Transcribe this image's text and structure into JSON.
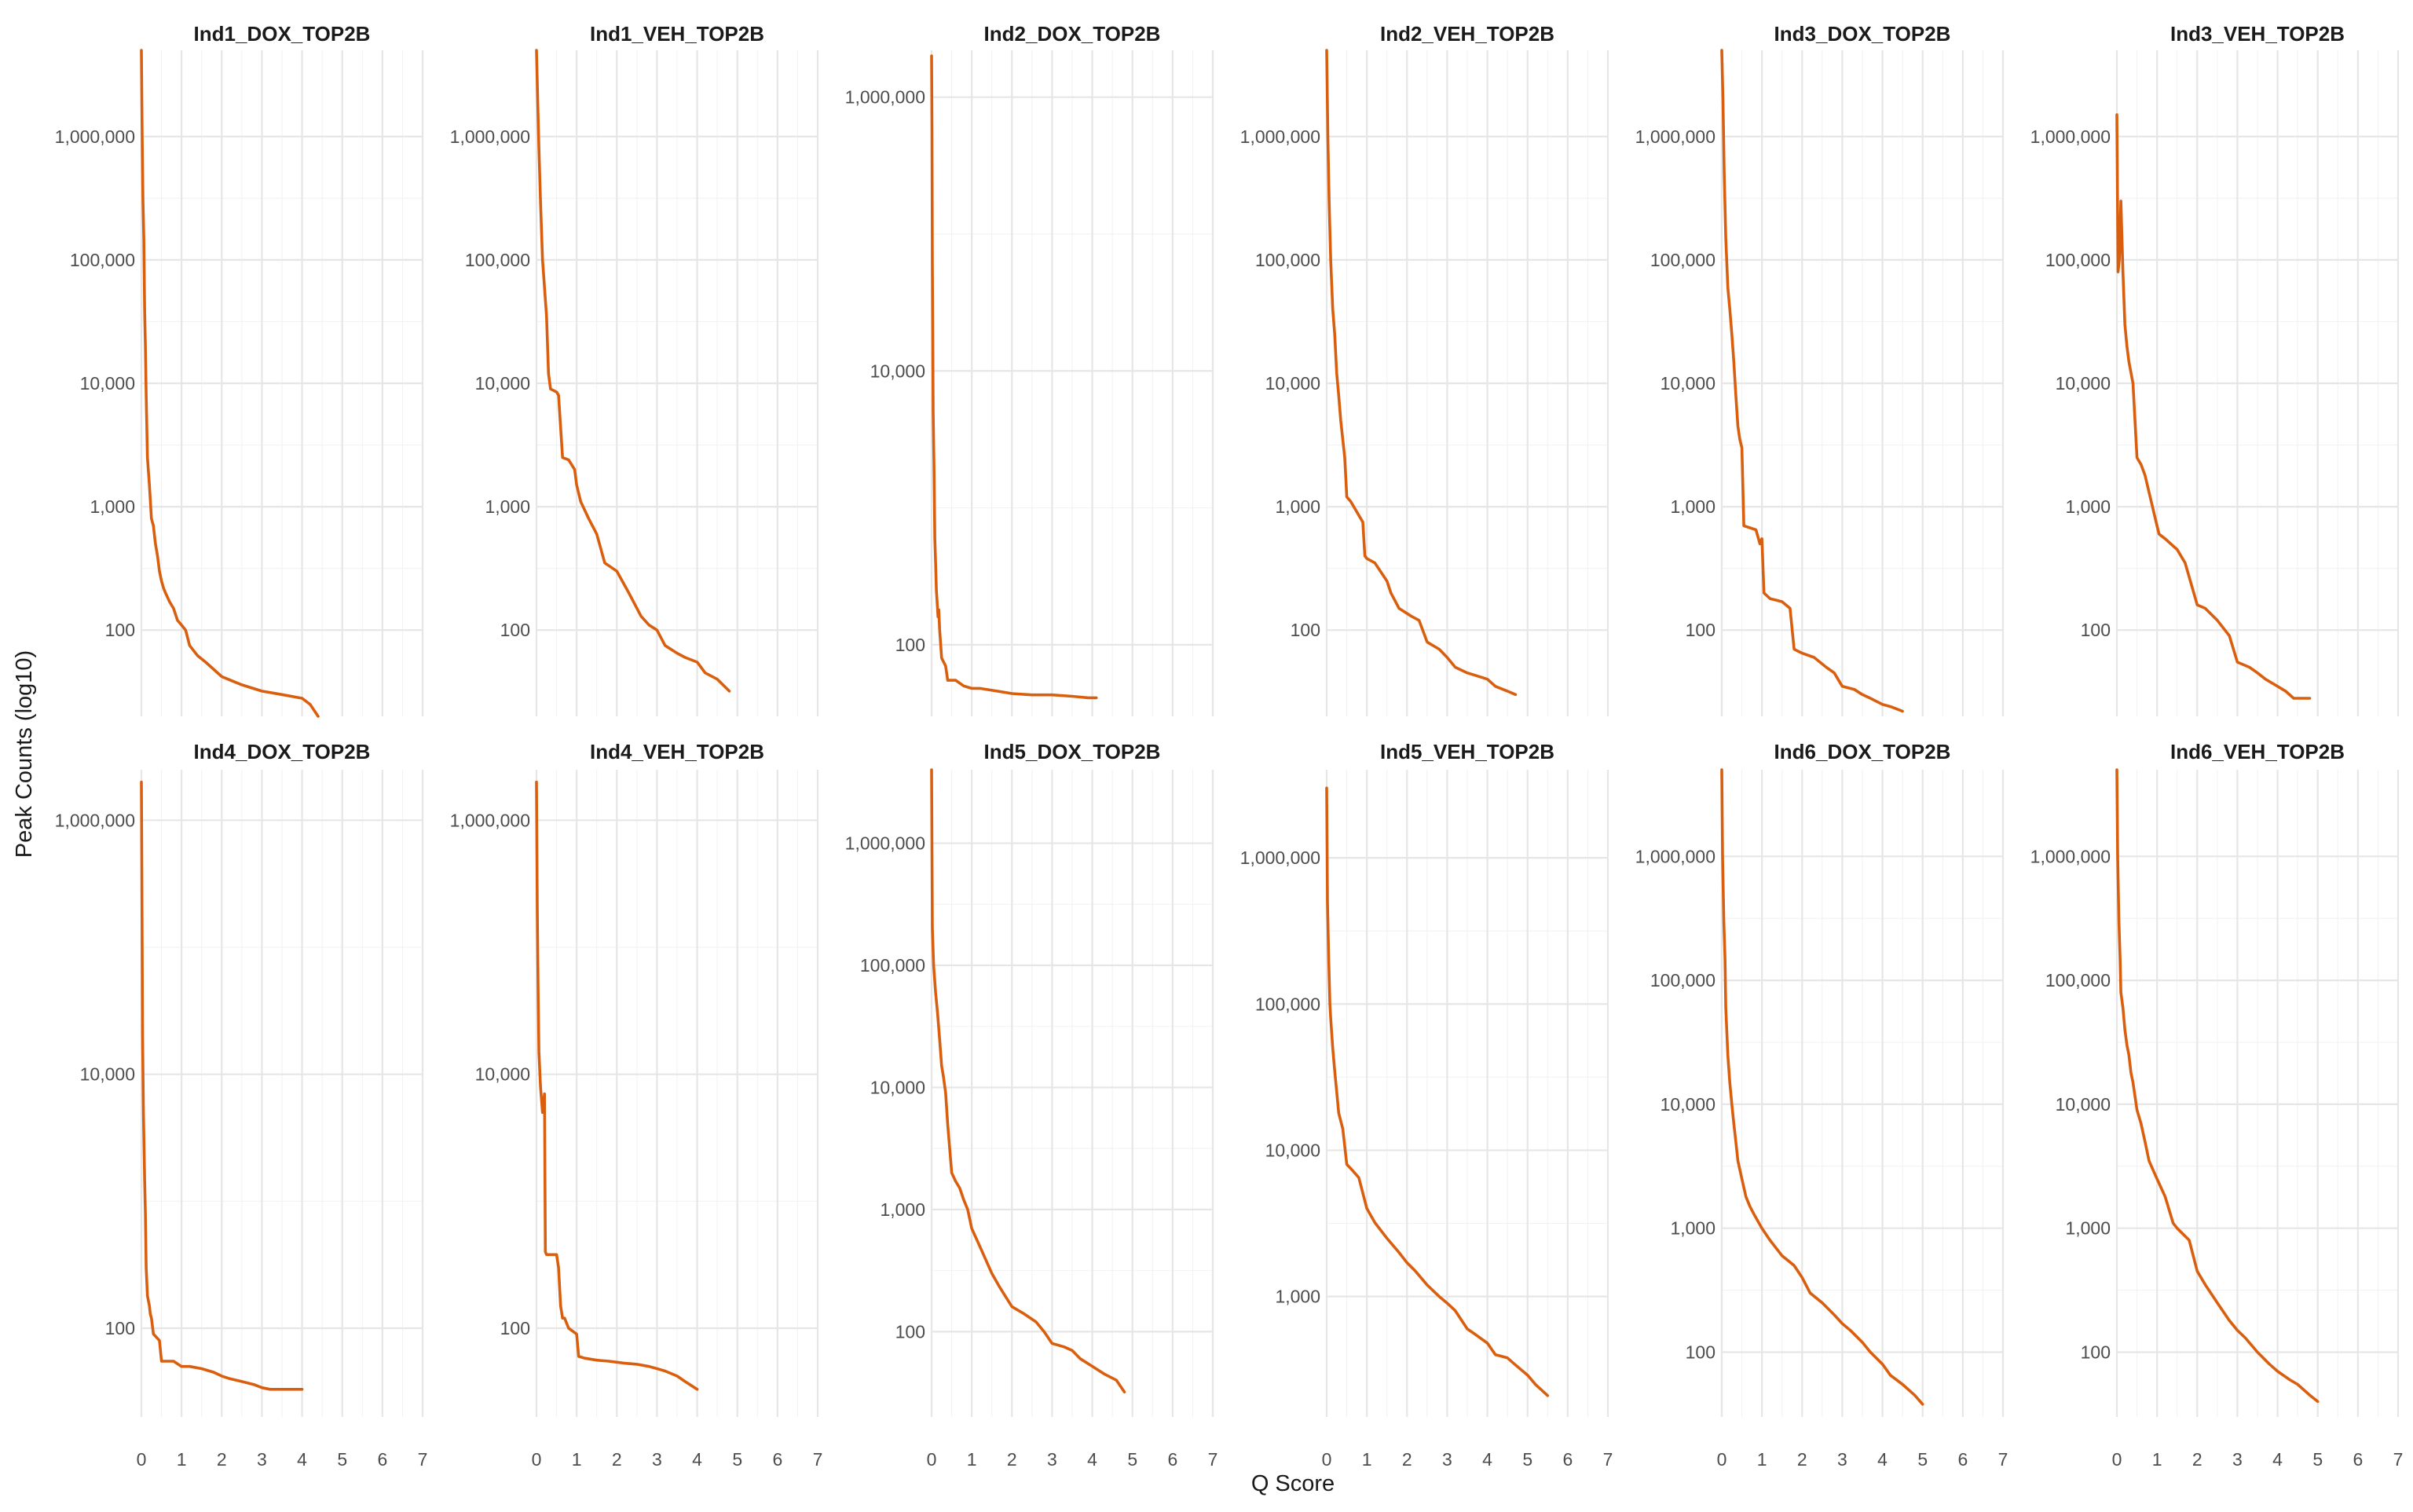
{
  "chart_data": {
    "type": "line",
    "xlabel": "Q Score",
    "ylabel": "Peak Counts (log10)",
    "y_scale": "log10",
    "line_color": "#D95F0E",
    "x_ticks": [
      0,
      1,
      2,
      3,
      4,
      5,
      6,
      7
    ],
    "xlim": [
      0,
      7
    ],
    "panels": [
      {
        "title": "Ind1_DOX_TOP2B",
        "ylim": [
          20,
          5000000
        ],
        "y_ticks": [
          100,
          1000,
          10000,
          100000,
          1000000
        ],
        "y_tick_labels": [
          "100",
          "1,000",
          "10,000",
          "100,000",
          "1,000,000"
        ],
        "x": [
          0,
          0.02,
          0.04,
          0.06,
          0.08,
          0.1,
          0.12,
          0.15,
          0.2,
          0.25,
          0.3,
          0.35,
          0.4,
          0.45,
          0.5,
          0.55,
          0.6,
          0.7,
          0.8,
          0.9,
          1.0,
          1.1,
          1.2,
          1.4,
          1.6,
          2.0,
          2.5,
          3.0,
          3.5,
          4.0,
          4.2,
          4.4
        ],
        "y": [
          5000000,
          1000000,
          300000,
          150000,
          40000,
          20000,
          8000,
          2500,
          1500,
          800,
          700,
          500,
          400,
          300,
          250,
          220,
          200,
          170,
          150,
          120,
          110,
          100,
          75,
          62,
          55,
          42,
          36,
          32,
          30,
          28,
          25,
          20
        ]
      },
      {
        "title": "Ind1_VEH_TOP2B",
        "ylim": [
          20,
          5000000
        ],
        "y_ticks": [
          100,
          1000,
          10000,
          100000,
          1000000
        ],
        "y_tick_labels": [
          "100",
          "1,000",
          "10,000",
          "100,000",
          "1,000,000"
        ],
        "x": [
          0,
          0.03,
          0.06,
          0.1,
          0.15,
          0.2,
          0.25,
          0.3,
          0.35,
          0.5,
          0.55,
          0.65,
          0.8,
          0.95,
          1.0,
          1.1,
          1.3,
          1.5,
          1.7,
          2.0,
          2.3,
          2.6,
          2.8,
          3.0,
          3.2,
          3.5,
          3.7,
          4.0,
          4.2,
          4.5,
          4.8
        ],
        "y": [
          5000000,
          2000000,
          800000,
          300000,
          100000,
          60000,
          35000,
          12000,
          9000,
          8500,
          8000,
          2500,
          2400,
          2000,
          1500,
          1100,
          800,
          600,
          350,
          300,
          200,
          130,
          110,
          100,
          75,
          65,
          60,
          55,
          45,
          40,
          32
        ]
      },
      {
        "title": "Ind2_DOX_TOP2B",
        "ylim": [
          30,
          2200000
        ],
        "y_ticks": [
          100,
          10000,
          1000000
        ],
        "y_tick_labels": [
          "100",
          "10,000",
          "1,000,000"
        ],
        "x": [
          0,
          0.01,
          0.02,
          0.03,
          0.04,
          0.06,
          0.08,
          0.1,
          0.12,
          0.14,
          0.16,
          0.18,
          0.2,
          0.25,
          0.35,
          0.4,
          0.6,
          0.8,
          1.0,
          1.2,
          1.6,
          2.0,
          2.5,
          3.0,
          3.5,
          3.9,
          4.1
        ],
        "y": [
          2000000,
          600000,
          60000,
          20000,
          5000,
          2000,
          600,
          400,
          250,
          200,
          160,
          180,
          130,
          80,
          70,
          55,
          55,
          50,
          48,
          48,
          46,
          44,
          43,
          43,
          42,
          41,
          41
        ]
      },
      {
        "title": "Ind2_VEH_TOP2B",
        "ylim": [
          20,
          5000000
        ],
        "y_ticks": [
          100,
          1000,
          10000,
          100000,
          1000000
        ],
        "y_tick_labels": [
          "100",
          "1,000",
          "10,000",
          "100,000",
          "1,000,000"
        ],
        "x": [
          0,
          0.03,
          0.06,
          0.1,
          0.15,
          0.2,
          0.25,
          0.3,
          0.35,
          0.4,
          0.45,
          0.5,
          0.6,
          0.9,
          0.95,
          1.0,
          1.2,
          1.5,
          1.6,
          1.8,
          2.1,
          2.3,
          2.5,
          2.8,
          3.0,
          3.2,
          3.5,
          3.7,
          4.0,
          4.2,
          4.5,
          4.7
        ],
        "y": [
          5000000,
          1000000,
          300000,
          100000,
          40000,
          25000,
          12000,
          8000,
          5000,
          3500,
          2500,
          1200,
          1100,
          750,
          400,
          380,
          350,
          250,
          200,
          150,
          130,
          120,
          80,
          70,
          60,
          50,
          45,
          43,
          40,
          35,
          32,
          30
        ]
      },
      {
        "title": "Ind3_DOX_TOP2B",
        "ylim": [
          20,
          5000000
        ],
        "y_ticks": [
          100,
          1000,
          10000,
          100000,
          1000000
        ],
        "y_tick_labels": [
          "100",
          "1,000",
          "10,000",
          "100,000",
          "1,000,000"
        ],
        "x": [
          0,
          0.03,
          0.06,
          0.1,
          0.15,
          0.2,
          0.25,
          0.3,
          0.35,
          0.4,
          0.45,
          0.5,
          0.55,
          0.85,
          0.95,
          1.0,
          1.05,
          1.2,
          1.5,
          1.7,
          1.8,
          2.0,
          2.3,
          2.6,
          2.8,
          3.0,
          3.3,
          3.5,
          3.7,
          4.0,
          4.2,
          4.5
        ],
        "y": [
          5000000,
          2000000,
          500000,
          150000,
          60000,
          40000,
          25000,
          15000,
          8000,
          4500,
          3500,
          3000,
          700,
          650,
          500,
          550,
          200,
          180,
          170,
          150,
          70,
          65,
          60,
          50,
          45,
          35,
          33,
          30,
          28,
          25,
          24,
          22
        ]
      },
      {
        "title": "Ind3_VEH_TOP2B",
        "ylim": [
          20,
          5000000
        ],
        "y_ticks": [
          100,
          1000,
          10000,
          100000,
          1000000
        ],
        "y_tick_labels": [
          "100",
          "1,000",
          "10,000",
          "100,000",
          "1,000,000"
        ],
        "x": [
          0,
          0.03,
          0.06,
          0.1,
          0.15,
          0.2,
          0.25,
          0.3,
          0.4,
          0.5,
          0.6,
          0.7,
          1.0,
          1.05,
          1.2,
          1.5,
          1.7,
          2.0,
          2.2,
          2.5,
          2.8,
          3.0,
          3.3,
          3.5,
          3.7,
          4.0,
          4.2,
          4.4,
          4.8
        ],
        "y": [
          1500000,
          80000,
          100000,
          300000,
          80000,
          30000,
          20000,
          15000,
          10000,
          2500,
          2200,
          1800,
          700,
          600,
          550,
          450,
          350,
          160,
          150,
          120,
          90,
          55,
          50,
          45,
          40,
          35,
          32,
          28,
          28
        ]
      },
      {
        "title": "Ind4_DOX_TOP2B",
        "ylim": [
          20,
          2500000
        ],
        "y_ticks": [
          100,
          10000,
          1000000
        ],
        "y_tick_labels": [
          "100",
          "10,000",
          "1,000,000"
        ],
        "x": [
          0,
          0.01,
          0.02,
          0.03,
          0.05,
          0.08,
          0.1,
          0.12,
          0.15,
          0.2,
          0.22,
          0.25,
          0.3,
          0.45,
          0.5,
          0.8,
          1.0,
          1.2,
          1.5,
          1.8,
          2.0,
          2.2,
          2.5,
          2.8,
          3.0,
          3.2,
          3.5,
          3.8,
          4.0
        ],
        "y": [
          2000000,
          500000,
          100000,
          20000,
          5000,
          1500,
          800,
          300,
          180,
          150,
          130,
          120,
          90,
          80,
          55,
          55,
          50,
          50,
          48,
          45,
          42,
          40,
          38,
          36,
          34,
          33,
          33,
          33,
          33
        ]
      },
      {
        "title": "Ind4_VEH_TOP2B",
        "ylim": [
          20,
          2500000
        ],
        "y_ticks": [
          100,
          10000,
          1000000
        ],
        "y_tick_labels": [
          "100",
          "10,000",
          "1,000,000"
        ],
        "x": [
          0,
          0.02,
          0.04,
          0.06,
          0.1,
          0.15,
          0.2,
          0.22,
          0.25,
          0.5,
          0.55,
          0.6,
          0.65,
          0.7,
          0.8,
          1.0,
          1.05,
          1.2,
          1.5,
          1.8,
          2.0,
          2.2,
          2.5,
          2.8,
          3.0,
          3.2,
          3.5,
          3.7,
          4.0
        ],
        "y": [
          2000000,
          200000,
          50000,
          15000,
          8000,
          5000,
          7000,
          400,
          380,
          380,
          300,
          150,
          120,
          120,
          100,
          90,
          60,
          58,
          56,
          55,
          54,
          53,
          52,
          50,
          48,
          46,
          42,
          38,
          33
        ]
      },
      {
        "title": "Ind5_DOX_TOP2B",
        "ylim": [
          20,
          4000000
        ],
        "y_ticks": [
          100,
          1000,
          10000,
          100000,
          1000000
        ],
        "y_tick_labels": [
          "100",
          "1,000",
          "10,000",
          "100,000",
          "1,000,000"
        ],
        "x": [
          0,
          0.02,
          0.05,
          0.1,
          0.15,
          0.2,
          0.25,
          0.3,
          0.35,
          0.4,
          0.5,
          0.6,
          0.7,
          0.8,
          0.9,
          1.0,
          1.2,
          1.5,
          1.7,
          2.0,
          2.3,
          2.6,
          2.8,
          3.0,
          3.3,
          3.5,
          3.7,
          4.0,
          4.3,
          4.6,
          4.8
        ],
        "y": [
          4000000,
          200000,
          100000,
          60000,
          40000,
          25000,
          15000,
          12000,
          9000,
          5000,
          2000,
          1700,
          1500,
          1200,
          1000,
          700,
          500,
          300,
          230,
          160,
          140,
          120,
          100,
          80,
          75,
          70,
          60,
          52,
          45,
          40,
          32
        ]
      },
      {
        "title": "Ind5_VEH_TOP2B",
        "ylim": [
          150,
          4000000
        ],
        "y_ticks": [
          1000,
          10000,
          100000,
          1000000
        ],
        "y_tick_labels": [
          "1,000",
          "10,000",
          "100,000",
          "1,000,000"
        ],
        "x": [
          0,
          0.02,
          0.05,
          0.08,
          0.1,
          0.15,
          0.2,
          0.25,
          0.3,
          0.4,
          0.5,
          0.6,
          0.8,
          1.0,
          1.2,
          1.5,
          1.8,
          2.0,
          2.2,
          2.5,
          2.8,
          3.0,
          3.2,
          3.5,
          3.7,
          4.0,
          4.2,
          4.5,
          4.7,
          5.0,
          5.2,
          5.5
        ],
        "y": [
          3000000,
          500000,
          200000,
          100000,
          80000,
          50000,
          35000,
          25000,
          18000,
          14000,
          8000,
          7500,
          6500,
          4000,
          3200,
          2500,
          2000,
          1700,
          1500,
          1200,
          1000,
          900,
          800,
          600,
          550,
          480,
          400,
          380,
          340,
          290,
          250,
          210
        ]
      },
      {
        "title": "Ind6_DOX_TOP2B",
        "ylim": [
          30,
          5000000
        ],
        "y_ticks": [
          100,
          1000,
          10000,
          100000,
          1000000
        ],
        "y_tick_labels": [
          "100",
          "1,000",
          "10,000",
          "100,000",
          "1,000,000"
        ],
        "x": [
          0,
          0.02,
          0.05,
          0.08,
          0.1,
          0.15,
          0.2,
          0.25,
          0.3,
          0.35,
          0.4,
          0.5,
          0.6,
          0.7,
          0.8,
          1.0,
          1.2,
          1.5,
          1.8,
          2.0,
          2.2,
          2.5,
          2.8,
          3.0,
          3.2,
          3.5,
          3.7,
          4.0,
          4.2,
          4.5,
          4.8,
          5.0
        ],
        "y": [
          5000000,
          1000000,
          300000,
          150000,
          60000,
          25000,
          15000,
          10000,
          7000,
          5000,
          3500,
          2500,
          1800,
          1500,
          1300,
          1000,
          800,
          600,
          500,
          400,
          300,
          250,
          200,
          170,
          150,
          120,
          100,
          80,
          65,
          55,
          45,
          38
        ]
      },
      {
        "title": "Ind6_VEH_TOP2B",
        "ylim": [
          30,
          5000000
        ],
        "y_ticks": [
          100,
          1000,
          10000,
          100000,
          1000000
        ],
        "y_tick_labels": [
          "100",
          "1,000",
          "10,000",
          "100,000",
          "1,000,000"
        ],
        "x": [
          0,
          0.02,
          0.05,
          0.08,
          0.1,
          0.15,
          0.2,
          0.25,
          0.3,
          0.35,
          0.4,
          0.5,
          0.6,
          0.7,
          0.8,
          1.0,
          1.2,
          1.4,
          1.5,
          1.8,
          2.0,
          2.2,
          2.5,
          2.8,
          3.0,
          3.2,
          3.5,
          3.8,
          4.0,
          4.3,
          4.5,
          4.8,
          5.0
        ],
        "y": [
          5000000,
          1000000,
          300000,
          150000,
          80000,
          60000,
          40000,
          30000,
          25000,
          18000,
          15000,
          9000,
          7000,
          5000,
          3500,
          2500,
          1800,
          1100,
          1000,
          800,
          450,
          350,
          250,
          180,
          150,
          130,
          100,
          80,
          70,
          60,
          55,
          45,
          40
        ]
      }
    ]
  }
}
